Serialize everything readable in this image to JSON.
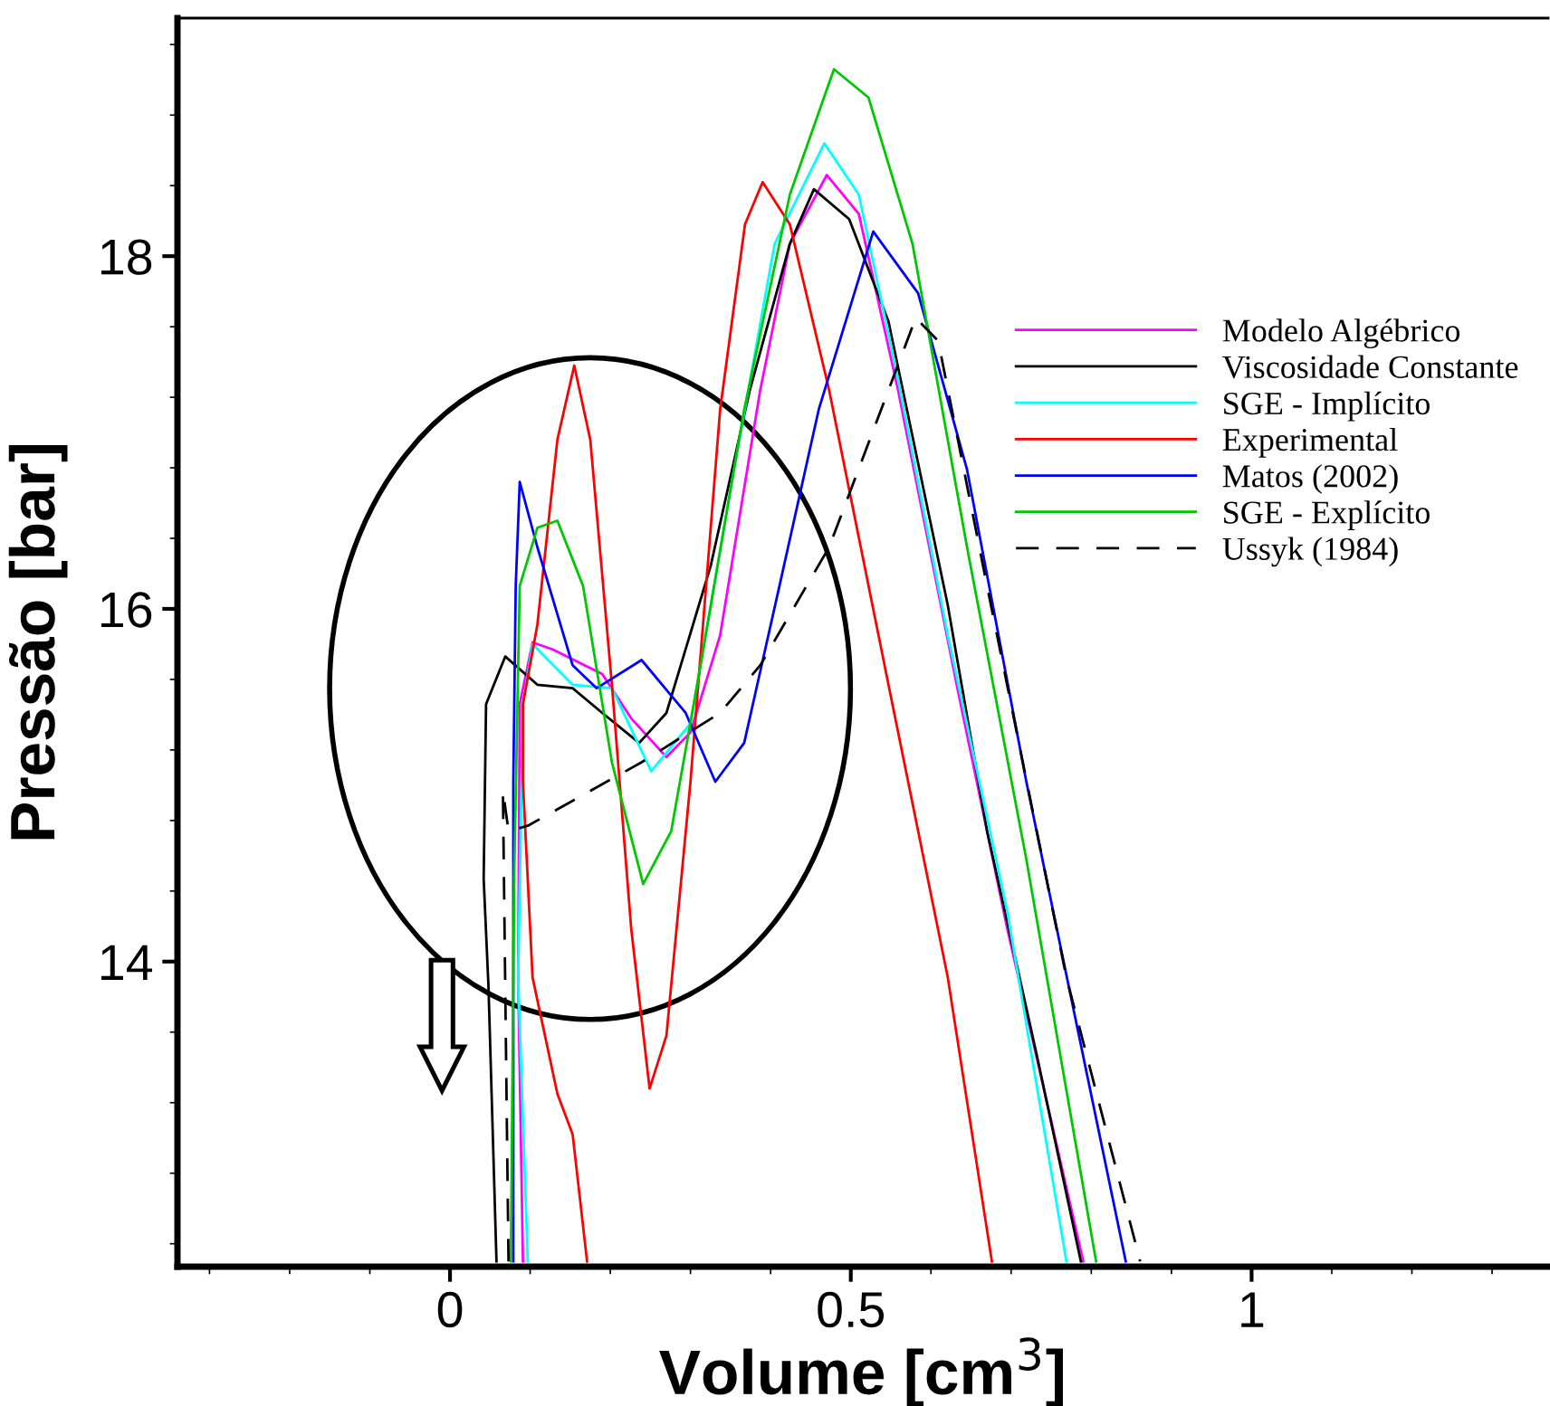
{
  "chart_data": {
    "type": "line",
    "xlabel": "Volume [cm$^{3}$]",
    "ylabel": "Pressão [bar]",
    "xlim": [
      -0.34,
      1.37
    ],
    "ylim": [
      12.27,
      19.35
    ],
    "xticks": [
      0,
      0.5,
      1
    ],
    "yticks": [
      14,
      16,
      18
    ],
    "grid": false,
    "legend": "right",
    "marker": "none",
    "series": [
      {
        "name": "Modelo Algébrico",
        "color": "#ff00ff",
        "x": [
          0.091,
          0.085,
          0.087,
          0.103,
          0.128,
          0.19,
          0.226,
          0.27,
          0.3,
          0.337,
          0.387,
          0.424,
          0.47,
          0.51,
          0.559,
          0.633,
          0.695,
          0.79
        ],
        "values": [
          12.3,
          13.91,
          15.46,
          15.81,
          15.77,
          15.63,
          15.38,
          15.16,
          15.3,
          15.85,
          17.24,
          18.07,
          18.46,
          18.24,
          17.24,
          15.55,
          14.19,
          12.3
        ]
      },
      {
        "name": "Viscosidade Constante",
        "color": "#000000",
        "x": [
          0.058,
          0.048,
          0.042,
          0.045,
          0.069,
          0.109,
          0.153,
          0.19,
          0.236,
          0.27,
          0.325,
          0.374,
          0.424,
          0.454,
          0.498,
          0.547,
          0.621,
          0.67,
          0.732,
          0.787
        ],
        "values": [
          12.3,
          13.86,
          14.47,
          15.46,
          15.73,
          15.57,
          15.55,
          15.41,
          15.24,
          15.41,
          16.24,
          17.24,
          18.07,
          18.38,
          18.21,
          17.63,
          16.02,
          14.74,
          13.47,
          12.3
        ]
      },
      {
        "name": "SGE - Implícito",
        "color": "#00ffff",
        "x": [
          0.097,
          0.085,
          0.091,
          0.103,
          0.153,
          0.202,
          0.251,
          0.3,
          0.35,
          0.405,
          0.467,
          0.51,
          0.559,
          0.621,
          0.695,
          0.769
        ],
        "values": [
          12.3,
          13.91,
          15.46,
          15.8,
          15.57,
          15.55,
          15.08,
          15.35,
          16.68,
          18.07,
          18.64,
          18.35,
          17.3,
          15.85,
          14.29,
          12.3
        ]
      },
      {
        "name": "Experimental",
        "color": "#ff0000",
        "x": [
          0.171,
          0.153,
          0.134,
          0.103,
          0.091,
          0.091,
          0.109,
          0.134,
          0.155,
          0.175,
          0.202,
          0.226,
          0.249,
          0.27,
          0.3,
          0.337,
          0.368,
          0.39,
          0.424,
          0.473,
          0.547,
          0.621,
          0.676
        ],
        "values": [
          12.3,
          13.02,
          13.25,
          13.91,
          15.02,
          15.46,
          15.91,
          16.96,
          17.38,
          16.96,
          15.57,
          14.19,
          13.28,
          13.58,
          15.02,
          17.13,
          18.18,
          18.42,
          18.18,
          17.24,
          15.57,
          13.91,
          12.3
        ]
      },
      {
        "name": "Matos (2002)",
        "color": "#0000ff",
        "x": [
          0.079,
          0.079,
          0.082,
          0.087,
          0.109,
          0.153,
          0.183,
          0.239,
          0.294,
          0.331,
          0.367,
          0.411,
          0.46,
          0.528,
          0.584,
          0.645,
          0.719,
          0.843
        ],
        "values": [
          12.3,
          15.02,
          16.13,
          16.72,
          16.35,
          15.68,
          15.55,
          15.71,
          15.41,
          15.02,
          15.24,
          16.13,
          17.13,
          18.14,
          17.79,
          16.79,
          15.02,
          12.3
        ]
      },
      {
        "name": "SGE - Explícito",
        "color": "#00c800",
        "x": [
          0.076,
          0.08,
          0.087,
          0.109,
          0.134,
          0.166,
          0.202,
          0.241,
          0.276,
          0.313,
          0.367,
          0.424,
          0.479,
          0.522,
          0.577,
          0.645,
          0.719,
          0.806
        ],
        "values": [
          12.3,
          14.47,
          16.13,
          16.46,
          16.5,
          16.13,
          15.13,
          14.44,
          14.74,
          15.69,
          17.13,
          18.35,
          19.06,
          18.9,
          18.07,
          16.35,
          14.58,
          12.3
        ]
      },
      {
        "name": "Ussyk (1984)",
        "color": "#000000",
        "line_style": "dashed",
        "x": [
          0.073,
          0.066,
          0.073,
          0.097,
          0.239,
          0.337,
          0.387,
          0.473,
          0.547,
          0.581,
          0.609,
          0.67,
          0.769,
          0.861
        ],
        "values": [
          12.3,
          14.97,
          14.74,
          14.77,
          15.13,
          15.41,
          15.68,
          16.35,
          17.24,
          17.65,
          17.52,
          16.13,
          13.91,
          12.3
        ]
      }
    ]
  }
}
